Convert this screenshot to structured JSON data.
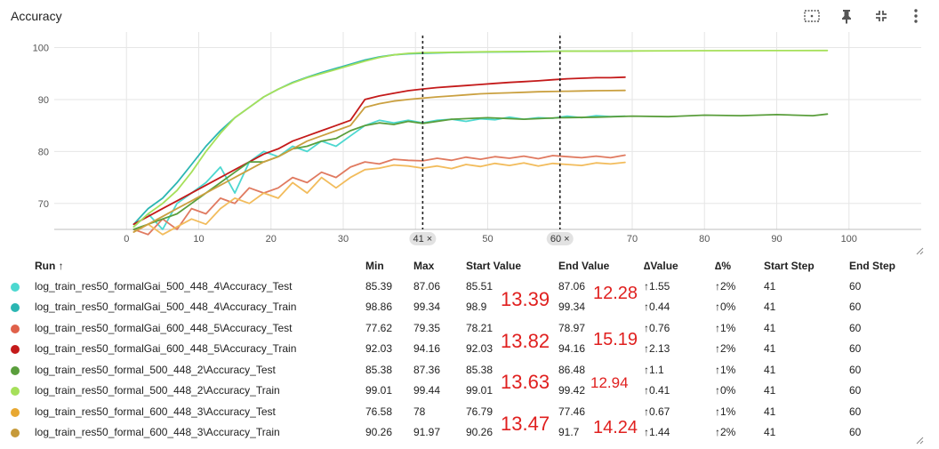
{
  "header": {
    "title": "Accuracy",
    "icons": [
      "fit-domain-icon",
      "pin-icon",
      "collapse-icon",
      "more-vert-icon"
    ]
  },
  "chart_data": {
    "type": "line",
    "title": "",
    "xlabel": "",
    "ylabel": "",
    "xlim": [
      -10,
      110
    ],
    "ylim": [
      65,
      103
    ],
    "xticks": [
      "0",
      "10",
      "20",
      "30",
      "40",
      "50",
      "60",
      "70",
      "80",
      "90",
      "100"
    ],
    "yticks": [
      "70",
      "80",
      "90",
      "100"
    ],
    "grid": true,
    "markers": [
      {
        "x": 41,
        "label": "41 ×"
      },
      {
        "x": 60,
        "label": "60 ×"
      }
    ],
    "series": [
      {
        "name": "log_train_res50_formalGai_500_448_4\\Accuracy_Test",
        "color": "#4dd8d0",
        "x": [
          1,
          3,
          5,
          7,
          9,
          11,
          13,
          15,
          17,
          19,
          21,
          23,
          25,
          27,
          29,
          31,
          33,
          35,
          37,
          39,
          41,
          43,
          45,
          47,
          49,
          51,
          53,
          55,
          57,
          59,
          61,
          63,
          65,
          67,
          69
        ],
        "y": [
          65.5,
          68,
          65,
          70,
          72,
          74,
          77,
          72,
          78,
          80,
          79,
          81,
          80,
          82,
          81,
          83,
          85,
          86,
          85.5,
          86,
          85.5,
          86,
          86.2,
          85.8,
          86.3,
          86.1,
          86.6,
          86.2,
          86.5,
          86.4,
          86.8,
          86.5,
          86.9,
          86.7,
          86.8
        ]
      },
      {
        "name": "log_train_res50_formalGai_500_448_4\\Accuracy_Train",
        "color": "#2bb6b2",
        "x": [
          1,
          3,
          5,
          7,
          9,
          11,
          13,
          15,
          17,
          19,
          21,
          23,
          25,
          27,
          29,
          31,
          33,
          35,
          37,
          39,
          41,
          45,
          50,
          55,
          60,
          65,
          70
        ],
        "y": [
          66,
          69,
          71,
          74,
          77.5,
          81,
          84,
          86.5,
          88.5,
          90.5,
          92,
          93.3,
          94.3,
          95.2,
          96,
          96.8,
          97.6,
          98.2,
          98.6,
          98.8,
          98.9,
          99.05,
          99.15,
          99.2,
          99.3,
          99.32,
          99.34
        ]
      },
      {
        "name": "log_train_res50_formalGai_600_448_5\\Accuracy_Test",
        "color": "#e07a60",
        "x": [
          1,
          3,
          5,
          7,
          9,
          11,
          13,
          15,
          17,
          19,
          21,
          23,
          25,
          27,
          29,
          31,
          33,
          35,
          37,
          39,
          41,
          43,
          45,
          47,
          49,
          51,
          53,
          55,
          57,
          59,
          61,
          63,
          65,
          67,
          69
        ],
        "y": [
          65,
          64,
          67,
          65,
          69,
          68,
          71,
          70,
          73,
          72,
          73,
          75,
          74,
          76,
          75,
          77,
          78,
          77.6,
          78.5,
          78.3,
          78.2,
          78.7,
          78.3,
          78.9,
          78.5,
          79,
          78.7,
          79.1,
          78.6,
          79.2,
          79,
          78.8,
          79.1,
          78.8,
          79.3
        ]
      },
      {
        "name": "log_train_res50_formalGai_600_448_5\\Accuracy_Train",
        "color": "#c41a1a",
        "x": [
          1,
          3,
          5,
          7,
          9,
          11,
          13,
          15,
          17,
          19,
          21,
          23,
          25,
          27,
          29,
          31,
          33,
          35,
          37,
          39,
          41,
          43,
          45,
          47,
          49,
          51,
          53,
          55,
          57,
          59,
          61,
          63,
          65,
          67,
          69
        ],
        "y": [
          66,
          67.5,
          69,
          70.5,
          72,
          73.5,
          75,
          76.5,
          78,
          79.5,
          80.5,
          82,
          83,
          84,
          85,
          86,
          90,
          90.7,
          91.2,
          91.7,
          92.03,
          92.3,
          92.5,
          92.7,
          92.9,
          93.1,
          93.3,
          93.45,
          93.6,
          93.8,
          94,
          94.1,
          94.2,
          94.2,
          94.3
        ]
      },
      {
        "name": "log_train_res50_formal_500_448_2\\Accuracy_Test",
        "color": "#5a9e3c",
        "x": [
          1,
          3,
          5,
          7,
          9,
          11,
          13,
          15,
          17,
          19,
          21,
          23,
          25,
          27,
          29,
          31,
          33,
          35,
          37,
          39,
          41,
          45,
          50,
          55,
          60,
          65,
          70,
          75,
          80,
          85,
          90,
          95,
          97
        ],
        "y": [
          65,
          66,
          67,
          68,
          70,
          72,
          74,
          76,
          78,
          78,
          79,
          80.5,
          81,
          82,
          82.5,
          84,
          85,
          85.5,
          85.2,
          85.8,
          85.4,
          86.2,
          86.5,
          86.2,
          86.5,
          86.6,
          86.8,
          86.7,
          87,
          86.9,
          87.1,
          86.9,
          87.2
        ]
      },
      {
        "name": "log_train_res50_formal_500_448_2\\Accuracy_Train",
        "color": "#a6e05a",
        "x": [
          1,
          3,
          5,
          7,
          9,
          11,
          13,
          15,
          17,
          19,
          21,
          23,
          25,
          27,
          29,
          31,
          33,
          35,
          37,
          39,
          41,
          50,
          60,
          70,
          80,
          90,
          97
        ],
        "y": [
          65.5,
          68,
          70,
          72.5,
          76,
          80,
          83.5,
          86.5,
          88.5,
          90.5,
          92,
          93.2,
          94.2,
          95,
          95.8,
          96.6,
          97.4,
          98.1,
          98.6,
          98.9,
          99.01,
          99.2,
          99.3,
          99.35,
          99.4,
          99.42,
          99.44
        ]
      },
      {
        "name": "log_train_res50_formal_600_448_3\\Accuracy_Test",
        "color": "#f2bc5c",
        "x": [
          1,
          3,
          5,
          7,
          9,
          11,
          13,
          15,
          17,
          19,
          21,
          23,
          25,
          27,
          29,
          31,
          33,
          35,
          37,
          39,
          41,
          43,
          45,
          47,
          49,
          51,
          53,
          55,
          57,
          59,
          61,
          63,
          65,
          67,
          69
        ],
        "y": [
          64.5,
          66,
          64,
          65.5,
          67,
          66,
          69,
          71,
          70,
          72,
          71,
          74,
          72,
          75,
          73,
          75,
          76.5,
          76.8,
          77.4,
          77.2,
          76.79,
          77.2,
          76.7,
          77.5,
          77.1,
          77.7,
          77.3,
          77.8,
          77.2,
          77.7,
          77.5,
          77.3,
          77.8,
          77.6,
          77.9
        ]
      },
      {
        "name": "log_train_res50_formal_600_448_3\\Accuracy_Train",
        "color": "#caa040",
        "x": [
          1,
          3,
          5,
          7,
          9,
          11,
          13,
          15,
          17,
          19,
          21,
          23,
          25,
          27,
          29,
          31,
          33,
          35,
          37,
          39,
          41,
          43,
          45,
          47,
          49,
          51,
          53,
          55,
          57,
          59,
          61,
          63,
          65,
          67,
          69
        ],
        "y": [
          64.5,
          66,
          67.5,
          69,
          70.5,
          72,
          73.5,
          75,
          76.5,
          78,
          79,
          80.5,
          82,
          83,
          84,
          85,
          88.5,
          89.2,
          89.7,
          90,
          90.26,
          90.5,
          90.7,
          90.9,
          91.1,
          91.2,
          91.3,
          91.4,
          91.5,
          91.55,
          91.6,
          91.65,
          91.7,
          91.72,
          91.75
        ]
      }
    ]
  },
  "table": {
    "headers": [
      "Run ↑",
      "Min",
      "Max",
      "Start Value",
      "End Value",
      "∆Value",
      "∆%",
      "Start Step",
      "End Step"
    ],
    "rows": [
      {
        "color": "#4dd8d0",
        "run": "log_train_res50_formalGai_500_448_4\\Accuracy_Test",
        "min": "85.39",
        "max": "87.06",
        "start": "85.51",
        "end": "87.06",
        "dvalue": "↑1.55",
        "dpct": "↑2%",
        "sstep": "41",
        "estep": "60"
      },
      {
        "color": "#2bb6b2",
        "run": "log_train_res50_formalGai_500_448_4\\Accuracy_Train",
        "min": "98.86",
        "max": "99.34",
        "start": "98.9",
        "end": "99.34",
        "dvalue": "↑0.44",
        "dpct": "↑0%",
        "sstep": "41",
        "estep": "60"
      },
      {
        "color": "#e0614a",
        "run": "log_train_res50_formalGai_600_448_5\\Accuracy_Test",
        "min": "77.62",
        "max": "79.35",
        "start": "78.21",
        "end": "78.97",
        "dvalue": "↑0.76",
        "dpct": "↑1%",
        "sstep": "41",
        "estep": "60"
      },
      {
        "color": "#c41a1a",
        "run": "log_train_res50_formalGai_600_448_5\\Accuracy_Train",
        "min": "92.03",
        "max": "94.16",
        "start": "92.03",
        "end": "94.16",
        "dvalue": "↑2.13",
        "dpct": "↑2%",
        "sstep": "41",
        "estep": "60"
      },
      {
        "color": "#5a9e3c",
        "run": "log_train_res50_formal_500_448_2\\Accuracy_Test",
        "min": "85.38",
        "max": "87.36",
        "start": "85.38",
        "end": "86.48",
        "dvalue": "↑1.1",
        "dpct": "↑1%",
        "sstep": "41",
        "estep": "60"
      },
      {
        "color": "#a6e05a",
        "run": "log_train_res50_formal_500_448_2\\Accuracy_Train",
        "min": "99.01",
        "max": "99.44",
        "start": "99.01",
        "end": "99.42",
        "dvalue": "↑0.41",
        "dpct": "↑0%",
        "sstep": "41",
        "estep": "60"
      },
      {
        "color": "#e8a832",
        "run": "log_train_res50_formal_600_448_3\\Accuracy_Test",
        "min": "76.58",
        "max": "78",
        "start": "76.79",
        "end": "77.46",
        "dvalue": "↑0.67",
        "dpct": "↑1%",
        "sstep": "41",
        "estep": "60"
      },
      {
        "color": "#c69a3a",
        "run": "log_train_res50_formal_600_448_3\\Accuracy_Train",
        "min": "90.26",
        "max": "91.97",
        "start": "90.26",
        "end": "91.7",
        "dvalue": "↑1.44",
        "dpct": "↑2%",
        "sstep": "41",
        "estep": "60"
      }
    ]
  },
  "annotations": {
    "start": [
      "13.39",
      "13.82",
      "13.63",
      "13.47"
    ],
    "end": [
      "12.28",
      "15.19",
      "12.94",
      "14.24"
    ]
  }
}
